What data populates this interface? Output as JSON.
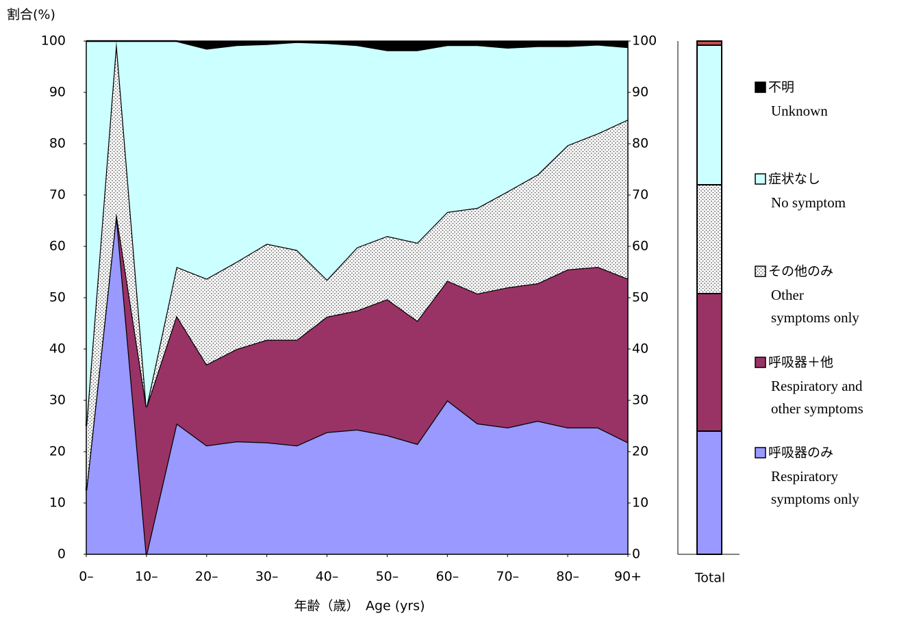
{
  "chart_data": {
    "type": "stacked-area",
    "y_label": "割合(%)",
    "x_label": "年齢（歳）　Age (yrs)",
    "total_label": "Total",
    "x": [
      0,
      5,
      10,
      15,
      20,
      25,
      30,
      35,
      40,
      45,
      50,
      55,
      60,
      65,
      70,
      75,
      80,
      85,
      90
    ],
    "xlim": [
      0,
      90
    ],
    "xticks": [
      {
        "value": 0,
        "label": "0–"
      },
      {
        "value": 10,
        "label": "10–"
      },
      {
        "value": 20,
        "label": "20–"
      },
      {
        "value": 30,
        "label": "30–"
      },
      {
        "value": 40,
        "label": "40–"
      },
      {
        "value": 50,
        "label": "50–"
      },
      {
        "value": 60,
        "label": "60–"
      },
      {
        "value": 70,
        "label": "70–"
      },
      {
        "value": 80,
        "label": "80–"
      },
      {
        "value": 90,
        "label": "90+"
      }
    ],
    "ylim": [
      0,
      100
    ],
    "yticks": [
      0,
      10,
      20,
      30,
      40,
      50,
      60,
      70,
      80,
      90,
      100
    ],
    "y2lim": [
      0,
      100
    ],
    "y2ticks": [
      0,
      10,
      20,
      30,
      40,
      50,
      60,
      70,
      80,
      90,
      100
    ],
    "series": [
      {
        "name": "呼吸器のみ",
        "name_en": [
          "Respiratory",
          "symptoms only"
        ],
        "color": "#9999ff",
        "values": [
          12.5,
          66.5,
          0,
          25.5,
          21.2,
          22,
          21.8,
          21.2,
          23.8,
          24.3,
          23.2,
          21.5,
          30,
          25.5,
          24.7,
          26,
          24.7,
          24.7,
          21.8
        ],
        "total": 24
      },
      {
        "name": "呼吸器＋他",
        "name_en": [
          "Respiratory and",
          "other symptoms"
        ],
        "color": "#993366",
        "values": [
          0,
          0,
          28.7,
          21,
          15.8,
          18,
          20,
          20.6,
          22.5,
          23.2,
          26.5,
          24,
          23.3,
          25.3,
          27.3,
          26.8,
          30.8,
          31.3,
          31.9
        ],
        "total": 26.8
      },
      {
        "name": "その他のみ",
        "name_en": [
          "Other",
          "symptoms only"
        ],
        "color": "#ffffff",
        "pattern": "dots",
        "values": [
          12.5,
          33.5,
          0,
          9.5,
          16.7,
          17,
          18.7,
          17.5,
          7.2,
          12.3,
          12.3,
          15.2,
          13.4,
          16.7,
          18.7,
          21.2,
          24.2,
          26,
          31
        ],
        "total": 21.2
      },
      {
        "name": "症状なし",
        "name_en": [
          "No symptom"
        ],
        "color": "#ccffff",
        "values": [
          75,
          0,
          71.3,
          44,
          44.8,
          42.2,
          38.9,
          40.5,
          46.1,
          39.4,
          36.2,
          37.5,
          32.5,
          31.7,
          28,
          25,
          19.3,
          17.3,
          14.1
        ],
        "total": 27.2
      },
      {
        "name": "不明",
        "name_en": [
          "Unknown"
        ],
        "color": "#000000",
        "values": [
          0,
          0,
          0,
          0,
          1.5,
          0.8,
          0.6,
          0.2,
          0.4,
          0.8,
          1.8,
          1.8,
          0.8,
          0.8,
          1.3,
          1,
          1,
          0.7,
          1.2
        ],
        "total": 0.8
      }
    ]
  }
}
